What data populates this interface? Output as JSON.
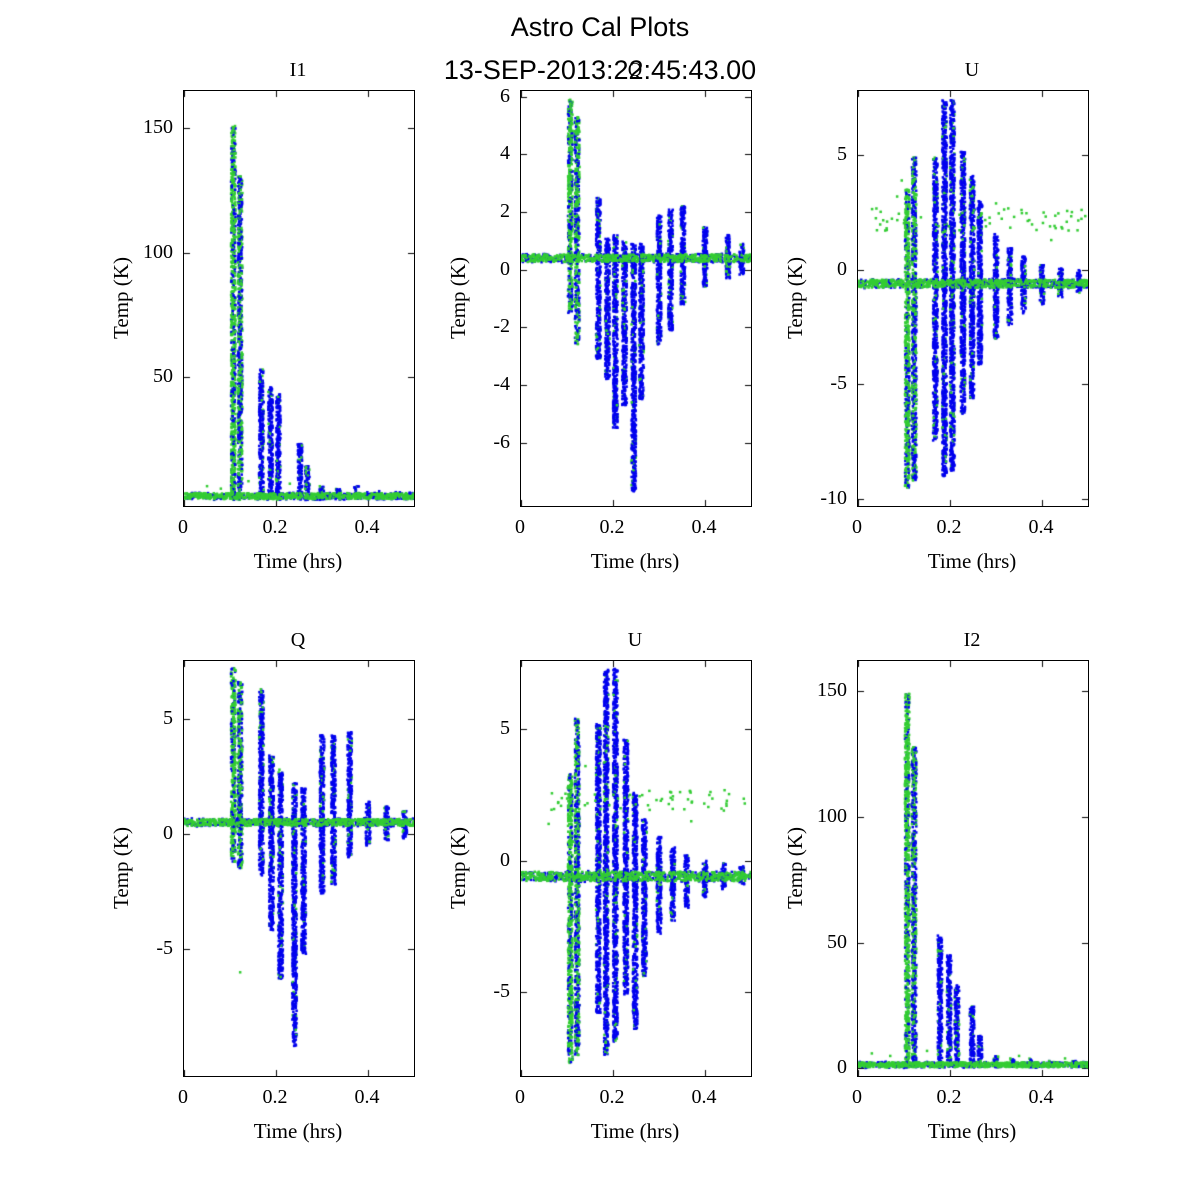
{
  "figure": {
    "title": "Astro Cal Plots",
    "subtitle": "13-SEP-2013:22:45:43.00",
    "colors": {
      "blue": "#0000EE",
      "green": "#33CC33",
      "axis": "#000000",
      "background": "#FFFFFF"
    }
  },
  "chart_data": [
    {
      "type": "scatter",
      "title": "I1",
      "xlabel": "Time (hrs)",
      "ylabel": "Temp (K)",
      "xlim": [
        0,
        0.5
      ],
      "ylim": [
        -2,
        165
      ],
      "xticks": [
        0,
        0.2,
        0.4
      ],
      "xtick_labels": [
        "0",
        "0.2",
        "0.4"
      ],
      "yticks": [
        50,
        100,
        150
      ],
      "ytick_labels": [
        "50",
        "100",
        "150"
      ],
      "baseline": {
        "y": 2,
        "noise": 1.2,
        "x0": 0,
        "x1": 0.5
      },
      "spikes": [
        {
          "x": 0.107,
          "y0": 0.5,
          "y1": 151,
          "green": 0.75
        },
        {
          "x": 0.122,
          "y0": 0.5,
          "y1": 131,
          "green": 0.55
        },
        {
          "x": 0.168,
          "y0": 0.5,
          "y1": 53,
          "green": 0.12
        },
        {
          "x": 0.188,
          "y0": 0.5,
          "y1": 46,
          "green": 0.12
        },
        {
          "x": 0.205,
          "y0": 0.5,
          "y1": 43,
          "green": 0.1
        },
        {
          "x": 0.252,
          "y0": 0.5,
          "y1": 23,
          "green": 0.12
        },
        {
          "x": 0.268,
          "y0": 0.5,
          "y1": 14,
          "green": 0.1
        },
        {
          "x": 0.3,
          "y0": 0.5,
          "y1": 6,
          "green": 0.3
        },
        {
          "x": 0.335,
          "y0": 0.5,
          "y1": 5,
          "green": 0.3
        },
        {
          "x": 0.375,
          "y0": 0.5,
          "y1": 6,
          "green": 0.3
        },
        {
          "x": 0.42,
          "y0": 0.5,
          "y1": 4,
          "green": 0.3
        },
        {
          "x": 0.465,
          "y0": 0.5,
          "y1": 4,
          "green": 0.3
        }
      ],
      "outliers": [
        {
          "x": 0.05,
          "y": 6,
          "c": "g"
        },
        {
          "x": 0.08,
          "y": 5,
          "c": "g"
        },
        {
          "x": 0.14,
          "y": 8,
          "c": "g"
        },
        {
          "x": 0.23,
          "y": 7,
          "c": "g"
        }
      ]
    },
    {
      "type": "scatter",
      "title": "Q",
      "xlabel": "Time (hrs)",
      "ylabel": "Temp (K)",
      "xlim": [
        0,
        0.5
      ],
      "ylim": [
        -8.2,
        6.2
      ],
      "xticks": [
        0,
        0.2,
        0.4
      ],
      "xtick_labels": [
        "0",
        "0.2",
        "0.4"
      ],
      "yticks": [
        -6,
        -4,
        -2,
        0,
        2,
        4,
        6
      ],
      "ytick_labels": [
        "-6",
        "-4",
        "-2",
        "0",
        "2",
        "4",
        "6"
      ],
      "baseline": {
        "y": 0.4,
        "noise": 0.13,
        "x0": 0,
        "x1": 0.5
      },
      "spikes": [
        {
          "x": 0.107,
          "y0": -1.5,
          "y1": 5.9,
          "green": 0.7
        },
        {
          "x": 0.122,
          "y0": -2.6,
          "y1": 5.3,
          "green": 0.55
        },
        {
          "x": 0.168,
          "y0": -3.1,
          "y1": 2.5,
          "green": 0.1
        },
        {
          "x": 0.188,
          "y0": -3.8,
          "y1": 1.1,
          "green": 0.08
        },
        {
          "x": 0.205,
          "y0": -5.5,
          "y1": 1.2,
          "green": 0.08
        },
        {
          "x": 0.225,
          "y0": -4.7,
          "y1": 1.0,
          "green": 0.08
        },
        {
          "x": 0.245,
          "y0": -7.7,
          "y1": 0.9,
          "green": 0.08
        },
        {
          "x": 0.262,
          "y0": -4.5,
          "y1": 0.9,
          "green": 0.1
        },
        {
          "x": 0.3,
          "y0": -2.6,
          "y1": 1.9,
          "green": 0.1
        },
        {
          "x": 0.325,
          "y0": -2.1,
          "y1": 2.1,
          "green": 0.1
        },
        {
          "x": 0.352,
          "y0": -1.2,
          "y1": 2.2,
          "green": 0.1
        },
        {
          "x": 0.4,
          "y0": -0.6,
          "y1": 1.5,
          "green": 0.1
        },
        {
          "x": 0.45,
          "y0": -0.3,
          "y1": 1.2,
          "green": 0.1
        },
        {
          "x": 0.48,
          "y0": -0.2,
          "y1": 0.9,
          "green": 0.1
        }
      ],
      "outliers": []
    },
    {
      "type": "scatter",
      "title": "U",
      "xlabel": "Time (hrs)",
      "ylabel": "Temp (K)",
      "xlim": [
        0,
        0.5
      ],
      "ylim": [
        -10.3,
        7.8
      ],
      "xticks": [
        0,
        0.2,
        0.4
      ],
      "xtick_labels": [
        "0",
        "0.2",
        "0.4"
      ],
      "yticks": [
        -10,
        -5,
        0,
        5
      ],
      "ytick_labels": [
        "-10",
        "-5",
        "0",
        "5"
      ],
      "baseline": {
        "y": -0.6,
        "noise": 0.18,
        "x0": 0,
        "x1": 0.5
      },
      "spikes": [
        {
          "x": 0.107,
          "y0": -9.5,
          "y1": 3.5,
          "green": 0.75
        },
        {
          "x": 0.122,
          "y0": -9.2,
          "y1": 4.9,
          "green": 0.5
        },
        {
          "x": 0.168,
          "y0": -7.5,
          "y1": 4.9,
          "green": 0.1
        },
        {
          "x": 0.188,
          "y0": -9.0,
          "y1": 7.4,
          "green": 0.1
        },
        {
          "x": 0.205,
          "y0": -8.8,
          "y1": 7.4,
          "green": 0.1
        },
        {
          "x": 0.228,
          "y0": -6.3,
          "y1": 5.2,
          "green": 0.08
        },
        {
          "x": 0.248,
          "y0": -5.6,
          "y1": 4.1,
          "green": 0.08
        },
        {
          "x": 0.265,
          "y0": -4.2,
          "y1": 3.0,
          "green": 0.08
        },
        {
          "x": 0.3,
          "y0": -3.0,
          "y1": 1.6,
          "green": 0.08
        },
        {
          "x": 0.33,
          "y0": -2.4,
          "y1": 1.0,
          "green": 0.08
        },
        {
          "x": 0.36,
          "y0": -1.9,
          "y1": 0.6,
          "green": 0.08
        },
        {
          "x": 0.4,
          "y0": -1.5,
          "y1": 0.3,
          "green": 0.08
        },
        {
          "x": 0.44,
          "y0": -1.2,
          "y1": 0.1,
          "green": 0.08
        },
        {
          "x": 0.48,
          "y0": -1.0,
          "y1": 0.0,
          "green": 0.08
        }
      ],
      "band": {
        "y0": 1.7,
        "y1": 2.7,
        "x0": 0.03,
        "x1": 0.5,
        "n": 70,
        "c": "g"
      },
      "outliers": [
        {
          "x": 0.095,
          "y": 3.9,
          "c": "g"
        },
        {
          "x": 0.085,
          "y": 3.2,
          "c": "g"
        },
        {
          "x": 0.3,
          "y": 2.9,
          "c": "g"
        },
        {
          "x": 0.42,
          "y": 1.3,
          "c": "g"
        }
      ]
    },
    {
      "type": "scatter",
      "title": "Q",
      "xlabel": "Time (hrs)",
      "ylabel": "Temp (K)",
      "xlim": [
        0,
        0.5
      ],
      "ylim": [
        -10.5,
        7.5
      ],
      "xticks": [
        0,
        0.2,
        0.4
      ],
      "xtick_labels": [
        "0",
        "0.2",
        "0.4"
      ],
      "yticks": [
        -5,
        0,
        5
      ],
      "ytick_labels": [
        "-5",
        "0",
        "5"
      ],
      "baseline": {
        "y": 0.5,
        "noise": 0.15,
        "x0": 0,
        "x1": 0.5
      },
      "spikes": [
        {
          "x": 0.107,
          "y0": -1.2,
          "y1": 7.2,
          "green": 0.75
        },
        {
          "x": 0.122,
          "y0": -1.5,
          "y1": 6.6,
          "green": 0.5
        },
        {
          "x": 0.168,
          "y0": -1.8,
          "y1": 6.3,
          "green": 0.12
        },
        {
          "x": 0.19,
          "y0": -4.2,
          "y1": 3.4,
          "green": 0.1
        },
        {
          "x": 0.21,
          "y0": -6.3,
          "y1": 2.8,
          "green": 0.1
        },
        {
          "x": 0.24,
          "y0": -9.2,
          "y1": 2.2,
          "green": 0.08
        },
        {
          "x": 0.26,
          "y0": -5.2,
          "y1": 2.0,
          "green": 0.08
        },
        {
          "x": 0.3,
          "y0": -2.6,
          "y1": 4.3,
          "green": 0.08
        },
        {
          "x": 0.325,
          "y0": -2.2,
          "y1": 4.3,
          "green": 0.08
        },
        {
          "x": 0.36,
          "y0": -1.0,
          "y1": 4.5,
          "green": 0.08
        },
        {
          "x": 0.4,
          "y0": -0.5,
          "y1": 1.4,
          "green": 0.1
        },
        {
          "x": 0.44,
          "y0": -0.3,
          "y1": 1.2,
          "green": 0.1
        },
        {
          "x": 0.48,
          "y0": -0.2,
          "y1": 1.0,
          "green": 0.1
        }
      ],
      "outliers": [
        {
          "x": 0.21,
          "y": -6.2,
          "c": "g"
        },
        {
          "x": 0.122,
          "y": -6.0,
          "c": "g"
        }
      ]
    },
    {
      "type": "scatter",
      "title": "U",
      "xlabel": "Time (hrs)",
      "ylabel": "Temp (K)",
      "xlim": [
        0,
        0.5
      ],
      "ylim": [
        -8.2,
        7.6
      ],
      "xticks": [
        0,
        0.2,
        0.4
      ],
      "xtick_labels": [
        "0",
        "0.2",
        "0.4"
      ],
      "yticks": [
        -5,
        0,
        5
      ],
      "ytick_labels": [
        "-5",
        "0",
        "5"
      ],
      "baseline": {
        "y": -0.6,
        "noise": 0.18,
        "x0": 0,
        "x1": 0.5
      },
      "spikes": [
        {
          "x": 0.107,
          "y0": -7.7,
          "y1": 3.3,
          "green": 0.75
        },
        {
          "x": 0.122,
          "y0": -7.4,
          "y1": 5.4,
          "green": 0.5
        },
        {
          "x": 0.168,
          "y0": -5.8,
          "y1": 5.2,
          "green": 0.1
        },
        {
          "x": 0.185,
          "y0": -7.4,
          "y1": 7.3,
          "green": 0.1
        },
        {
          "x": 0.205,
          "y0": -6.9,
          "y1": 7.3,
          "green": 0.1
        },
        {
          "x": 0.228,
          "y0": -5.1,
          "y1": 4.6,
          "green": 0.08
        },
        {
          "x": 0.248,
          "y0": -6.4,
          "y1": 2.6,
          "green": 0.08
        },
        {
          "x": 0.268,
          "y0": -4.4,
          "y1": 1.6,
          "green": 0.08
        },
        {
          "x": 0.3,
          "y0": -2.8,
          "y1": 0.9,
          "green": 0.08
        },
        {
          "x": 0.33,
          "y0": -2.3,
          "y1": 0.5,
          "green": 0.08
        },
        {
          "x": 0.36,
          "y0": -1.8,
          "y1": 0.2,
          "green": 0.08
        },
        {
          "x": 0.4,
          "y0": -1.4,
          "y1": 0.0,
          "green": 0.08
        },
        {
          "x": 0.44,
          "y0": -1.1,
          "y1": -0.1,
          "green": 0.08
        },
        {
          "x": 0.48,
          "y0": -0.9,
          "y1": -0.2,
          "green": 0.08
        }
      ],
      "band": {
        "y0": 1.9,
        "y1": 2.7,
        "x0": 0.03,
        "x1": 0.5,
        "n": 55,
        "c": "g"
      },
      "outliers": [
        {
          "x": 0.06,
          "y": 1.4,
          "c": "g"
        },
        {
          "x": 0.14,
          "y": 3.6,
          "c": "g"
        },
        {
          "x": 0.37,
          "y": 1.5,
          "c": "g"
        }
      ]
    },
    {
      "type": "scatter",
      "title": "I2",
      "xlabel": "Time (hrs)",
      "ylabel": "Temp (K)",
      "xlim": [
        0,
        0.5
      ],
      "ylim": [
        -3,
        162
      ],
      "xticks": [
        0,
        0.2,
        0.4
      ],
      "xtick_labels": [
        "0",
        "0.2",
        "0.4"
      ],
      "yticks": [
        0,
        50,
        100,
        150
      ],
      "ytick_labels": [
        "0",
        "50",
        "100",
        "150"
      ],
      "baseline": {
        "y": 1.5,
        "noise": 1.0,
        "x0": 0,
        "x1": 0.5
      },
      "spikes": [
        {
          "x": 0.107,
          "y0": 0.5,
          "y1": 149,
          "green": 0.8
        },
        {
          "x": 0.122,
          "y0": 0.5,
          "y1": 128,
          "green": 0.45
        },
        {
          "x": 0.178,
          "y0": 0.5,
          "y1": 53,
          "green": 0.1
        },
        {
          "x": 0.198,
          "y0": 0.5,
          "y1": 45,
          "green": 0.1
        },
        {
          "x": 0.215,
          "y0": 0.5,
          "y1": 33,
          "green": 0.1
        },
        {
          "x": 0.248,
          "y0": 0.5,
          "y1": 25,
          "green": 0.1
        },
        {
          "x": 0.265,
          "y0": 0.5,
          "y1": 13,
          "green": 0.1
        },
        {
          "x": 0.3,
          "y0": 0.5,
          "y1": 5,
          "green": 0.3
        },
        {
          "x": 0.335,
          "y0": 0.5,
          "y1": 4,
          "green": 0.3
        },
        {
          "x": 0.375,
          "y0": 0.5,
          "y1": 4,
          "green": 0.3
        },
        {
          "x": 0.42,
          "y0": 0.5,
          "y1": 3,
          "green": 0.3
        },
        {
          "x": 0.47,
          "y0": 0.5,
          "y1": 3,
          "green": 0.3
        }
      ],
      "outliers": [
        {
          "x": 0.03,
          "y": 6,
          "c": "g"
        },
        {
          "x": 0.07,
          "y": 5,
          "c": "g"
        },
        {
          "x": 0.15,
          "y": 7,
          "c": "g"
        },
        {
          "x": 0.22,
          "y": 6,
          "c": "g"
        },
        {
          "x": 0.35,
          "y": 5,
          "c": "g"
        },
        {
          "x": 0.45,
          "y": 4,
          "c": "g"
        }
      ]
    }
  ]
}
